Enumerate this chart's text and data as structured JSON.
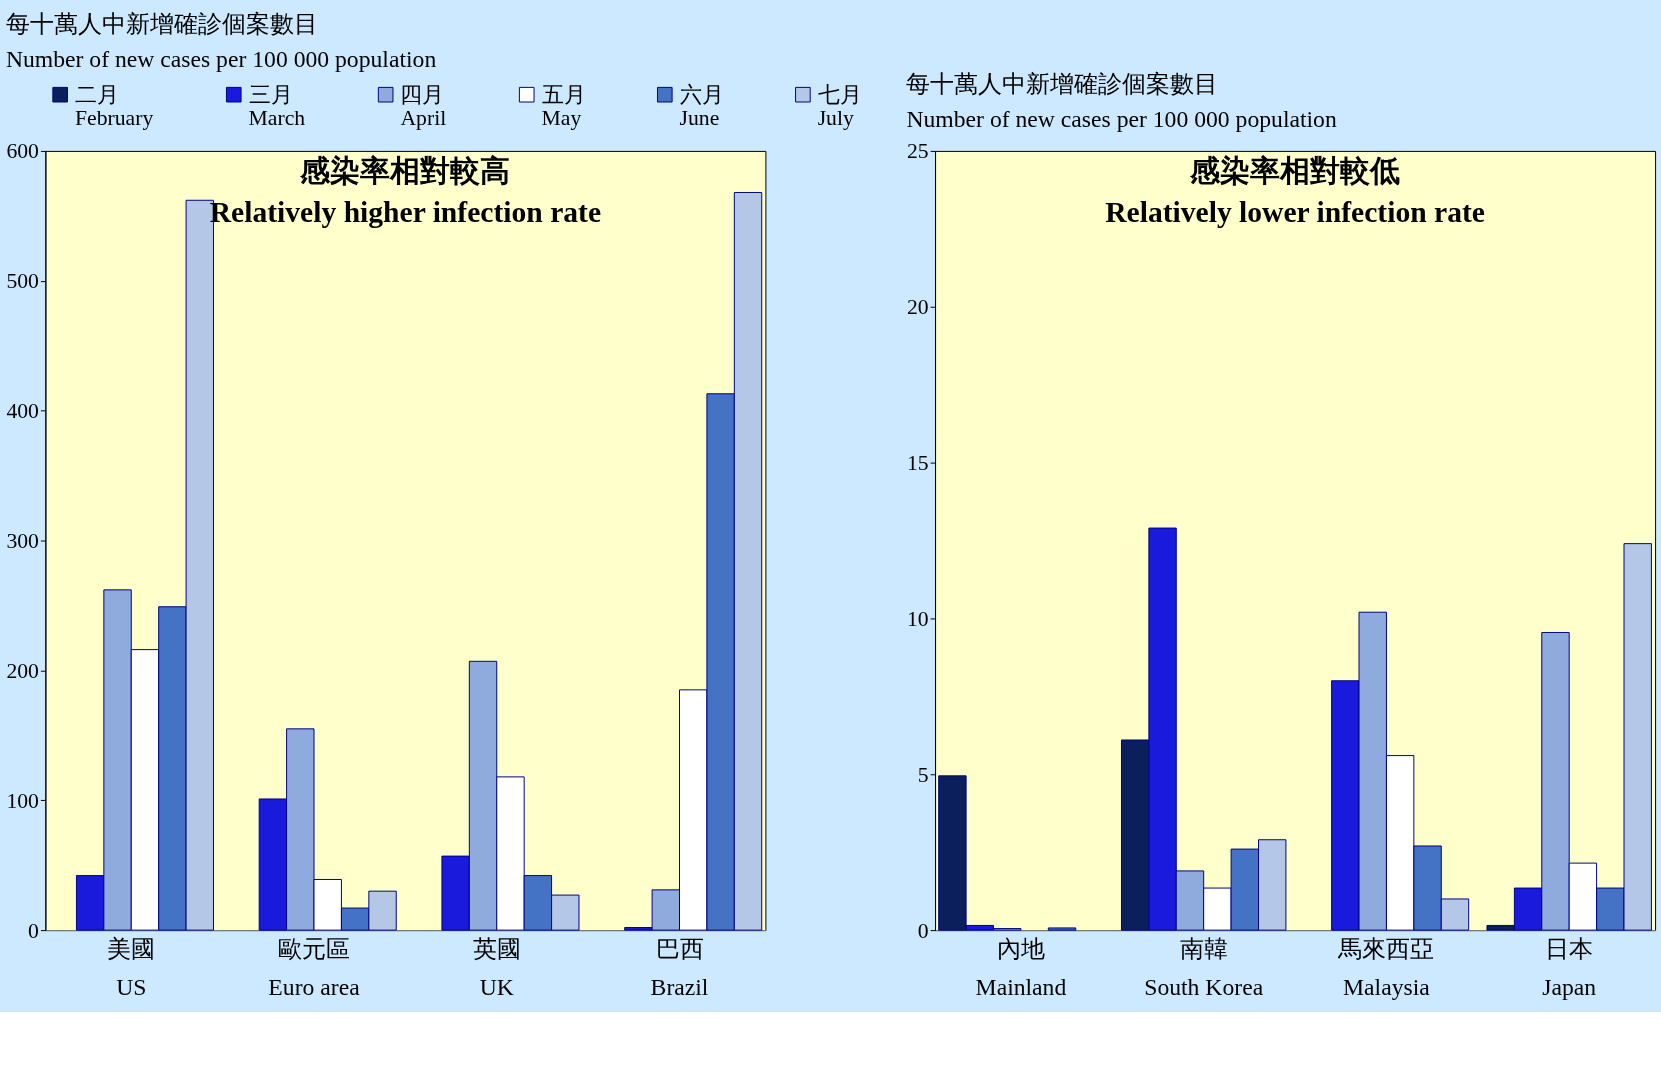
{
  "chart_data": [
    {
      "type": "bar",
      "ylabel": "每十萬人中新增確診個案數目\nNumber of new cases per 100 000 population",
      "annotations": [
        "感染率相對較高",
        "Relatively higher infection rate"
      ],
      "categories": [
        "美國\nUS",
        "歐元區\nEuro area",
        "英國\nUK",
        "巴西\nBrazil"
      ],
      "series": [
        {
          "name": "二月\nFebruary",
          "color": "#0a1f5c",
          "values": [
            null,
            null,
            null,
            null
          ]
        },
        {
          "name": "三月\nMarch",
          "color": "#1a1adc",
          "values": [
            42,
            101,
            57,
            2
          ]
        },
        {
          "name": "四月\nApril",
          "color": "#8faadc",
          "values": [
            262,
            155,
            207,
            31
          ]
        },
        {
          "name": "五月\nMay",
          "color": "#ffffff",
          "values": [
            216,
            39,
            118,
            185
          ]
        },
        {
          "name": "六月\nJune",
          "color": "#4472c4",
          "values": [
            249,
            17,
            42,
            413
          ]
        },
        {
          "name": "七月\nJuly",
          "color": "#b4c7e7",
          "values": [
            562,
            30,
            27,
            568
          ]
        }
      ],
      "ylim": [
        0,
        600
      ],
      "yticks": [
        0,
        100,
        200,
        300,
        400,
        500,
        600
      ],
      "legend": "top",
      "grid": false
    },
    {
      "type": "bar",
      "ylabel": "每十萬人中新增確診個案數目\nNumber of new cases per 100 000 population",
      "annotations": [
        "感染率相對較低",
        "Relatively lower infection rate"
      ],
      "categories": [
        "內地\nMainland",
        "南韓\nSouth Korea",
        "馬來西亞\nMalaysia",
        "日本\nJapan"
      ],
      "series": [
        {
          "color": "#0a1f5c",
          "values": [
            4.95,
            6.1,
            null,
            0.15
          ]
        },
        {
          "color": "#1a1adc",
          "values": [
            0.15,
            12.9,
            8.0,
            1.35
          ]
        },
        {
          "color": "#8faadc",
          "values": [
            0.05,
            1.9,
            10.2,
            9.55
          ]
        },
        {
          "color": "#ffffff",
          "values": [
            null,
            1.35,
            5.6,
            2.15
          ]
        },
        {
          "color": "#4472c4",
          "values": [
            0.07,
            2.6,
            2.7,
            1.35
          ]
        },
        {
          "color": "#b4c7e7",
          "values": [
            null,
            2.9,
            1.0,
            12.4
          ]
        }
      ],
      "ylim": [
        0,
        25
      ],
      "yticks": [
        0,
        5,
        10,
        15,
        20,
        25
      ],
      "grid": false
    }
  ]
}
